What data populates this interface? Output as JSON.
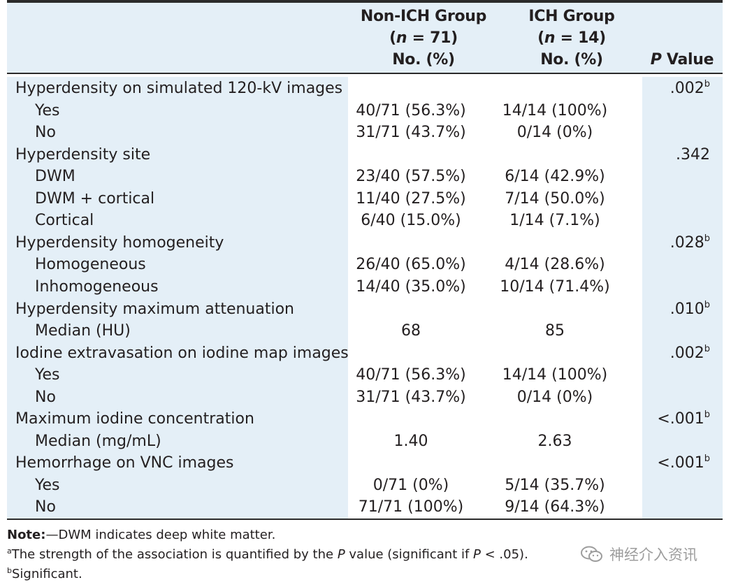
{
  "table": {
    "columns": [
      {
        "lines": [
          "Non-ICH Group",
          "(n = 71)",
          "No. (%)"
        ]
      },
      {
        "lines": [
          "ICH Group",
          "(n = 14)",
          "No. (%)"
        ]
      },
      {
        "lines": [
          "P Value"
        ]
      }
    ],
    "rows": [
      {
        "label": "Hyperdensity on simulated 120-kV images",
        "sub": false,
        "non_ich": "",
        "ich": "",
        "p": ".002",
        "p_sup": "b"
      },
      {
        "label": "Yes",
        "sub": true,
        "non_ich": "40/71 (56.3%)",
        "ich": "14/14 (100%)",
        "p": "",
        "p_sup": ""
      },
      {
        "label": "No",
        "sub": true,
        "non_ich": "31/71 (43.7%)",
        "ich": "0/14 (0%)",
        "p": "",
        "p_sup": ""
      },
      {
        "label": "Hyperdensity site",
        "sub": false,
        "non_ich": "",
        "ich": "",
        "p": ".342",
        "p_sup": ""
      },
      {
        "label": "DWM",
        "sub": true,
        "non_ich": "23/40 (57.5%)",
        "ich": "6/14 (42.9%)",
        "p": "",
        "p_sup": ""
      },
      {
        "label": "DWM + cortical",
        "sub": true,
        "non_ich": "11/40 (27.5%)",
        "ich": "7/14 (50.0%)",
        "p": "",
        "p_sup": ""
      },
      {
        "label": "Cortical",
        "sub": true,
        "non_ich": "6/40 (15.0%)",
        "ich": "1/14 (7.1%)",
        "p": "",
        "p_sup": ""
      },
      {
        "label": "Hyperdensity homogeneity",
        "sub": false,
        "non_ich": "",
        "ich": "",
        "p": ".028",
        "p_sup": "b"
      },
      {
        "label": "Homogeneous",
        "sub": true,
        "non_ich": "26/40 (65.0%)",
        "ich": "4/14 (28.6%)",
        "p": "",
        "p_sup": ""
      },
      {
        "label": "Inhomogeneous",
        "sub": true,
        "non_ich": "14/40 (35.0%)",
        "ich": "10/14 (71.4%)",
        "p": "",
        "p_sup": ""
      },
      {
        "label": "Hyperdensity maximum attenuation",
        "sub": false,
        "non_ich": "",
        "ich": "",
        "p": ".010",
        "p_sup": "b"
      },
      {
        "label": "Median (HU)",
        "sub": true,
        "non_ich": "68",
        "ich": "85",
        "p": "",
        "p_sup": ""
      },
      {
        "label": "Iodine extravasation on iodine map images",
        "sub": false,
        "non_ich": "",
        "ich": "",
        "p": ".002",
        "p_sup": "b"
      },
      {
        "label": "Yes",
        "sub": true,
        "non_ich": "40/71 (56.3%)",
        "ich": "14/14 (100%)",
        "p": "",
        "p_sup": ""
      },
      {
        "label": "No",
        "sub": true,
        "non_ich": "31/71 (43.7%)",
        "ich": "0/14 (0%)",
        "p": "",
        "p_sup": ""
      },
      {
        "label": "Maximum iodine concentration",
        "sub": false,
        "non_ich": "",
        "ich": "",
        "p": "<.001",
        "p_sup": "b"
      },
      {
        "label": "Median (mg/mL)",
        "sub": true,
        "non_ich": "1.40",
        "ich": "2.63",
        "p": "",
        "p_sup": ""
      },
      {
        "label": "Hemorrhage on VNC images",
        "sub": false,
        "non_ich": "",
        "ich": "",
        "p": "<.001",
        "p_sup": "b"
      },
      {
        "label": "Yes",
        "sub": true,
        "non_ich": "0/71 (0%)",
        "ich": "5/14 (35.7%)",
        "p": "",
        "p_sup": ""
      },
      {
        "label": "No",
        "sub": true,
        "non_ich": "71/71 (100%)",
        "ich": "9/14 (64.3%)",
        "p": "",
        "p_sup": ""
      }
    ]
  },
  "notes": {
    "note_title": "Note:",
    "note_text": "—DWM indicates deep white matter.",
    "footnote_a_mark": "a",
    "footnote_a_text": "The strength of the association is quantified by the P value (significant if P < .05).",
    "footnote_b_mark": "b",
    "footnote_b_text": "Significant."
  },
  "watermark": {
    "text": "神经介入资讯",
    "icon": "wechat-icon"
  },
  "colors": {
    "shading": "#e4eff7",
    "rule": "#2b2b2b",
    "text": "#231f20",
    "watermark": "#8d8d8d"
  }
}
